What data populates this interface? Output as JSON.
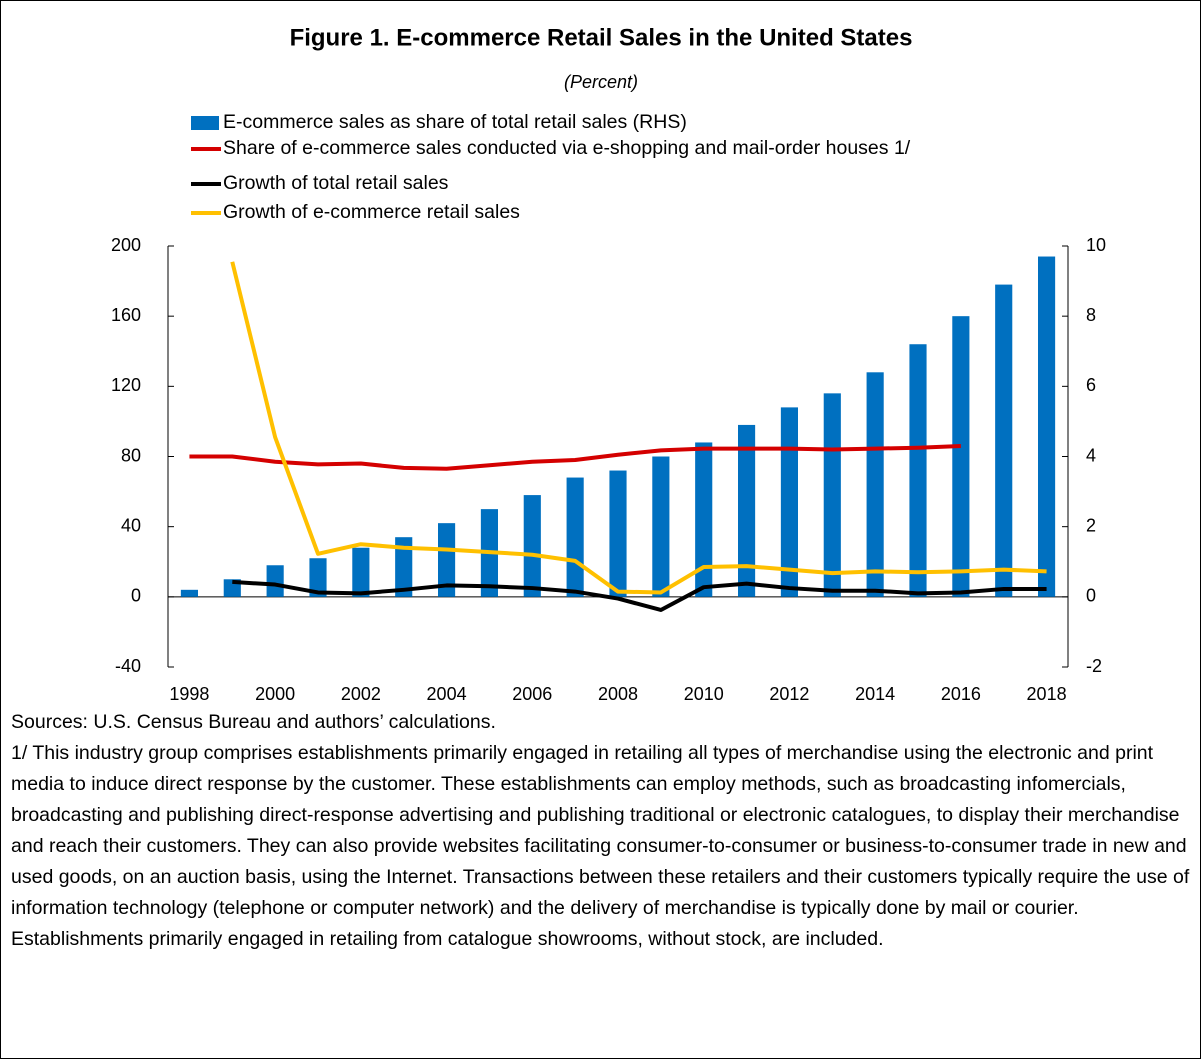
{
  "chart_data": {
    "type": "combo",
    "title": "Figure 1. E-commerce Retail Sales in the United States",
    "subtitle": "(Percent)",
    "categories": [
      "1998",
      "1999",
      "2000",
      "2001",
      "2002",
      "2003",
      "2004",
      "2005",
      "2006",
      "2007",
      "2008",
      "2009",
      "2010",
      "2011",
      "2012",
      "2013",
      "2014",
      "2015",
      "2016",
      "2017",
      "2018"
    ],
    "xtick_labels": [
      "1998",
      "2000",
      "2002",
      "2004",
      "2006",
      "2008",
      "2010",
      "2012",
      "2014",
      "2016",
      "2018"
    ],
    "series": [
      {
        "name": "E-commerce sales as share of total retail sales (RHS)",
        "type": "bar",
        "axis": "y2",
        "color": "#0070c0",
        "values": [
          0.2,
          0.5,
          0.9,
          1.1,
          1.4,
          1.7,
          2.1,
          2.5,
          2.9,
          3.4,
          3.6,
          4.0,
          4.4,
          4.9,
          5.4,
          5.8,
          6.4,
          7.2,
          8.0,
          8.9,
          9.7
        ]
      },
      {
        "name": "Share of e-commerce sales conducted via e-shopping and mail-order houses 1/",
        "type": "line",
        "color": "#d40000",
        "values": [
          80,
          80,
          77,
          75.5,
          76,
          73.5,
          73,
          75,
          77,
          78,
          81,
          83.5,
          84.5,
          84.5,
          84.5,
          84,
          84.5,
          85,
          86,
          null,
          null
        ]
      },
      {
        "name": "Growth of total retail sales",
        "type": "line",
        "color": "#000000",
        "values": [
          null,
          8.5,
          7,
          2.5,
          2,
          4,
          6.5,
          6,
          5,
          3,
          -1,
          -7.5,
          5.5,
          7.5,
          5,
          3.5,
          3.5,
          2,
          2.5,
          4.5,
          4.5
        ]
      },
      {
        "name": "Growth of e-commerce retail sales",
        "type": "line",
        "color": "#ffc000",
        "values": [
          null,
          191,
          91,
          24.5,
          30,
          28,
          27,
          25.5,
          24,
          20.5,
          3,
          2.5,
          17,
          17.5,
          15.5,
          13.5,
          14.5,
          14,
          14.5,
          15.5,
          14.5
        ]
      }
    ],
    "ylim": [
      -40,
      200
    ],
    "yticks": [
      -40,
      0,
      40,
      80,
      120,
      160,
      200
    ],
    "y2lim": [
      -2,
      10
    ],
    "y2ticks": [
      -2,
      0,
      2,
      4,
      6,
      8,
      10
    ],
    "grid": false,
    "notes": [
      "Sources: U.S. Census Bureau and authors’ calculations.",
      "1/ This industry group comprises establishments primarily engaged in retailing all types of merchandise using the electronic and print media to induce direct response by the customer. These establishments can employ methods, such as broadcasting infomercials, broadcasting and publishing direct-response advertising and publishing traditional or electronic catalogues, to display their merchandise and reach their customers. They can also provide websites facilitating consumer-to-consumer or business-to-consumer trade in new and used goods, on an auction basis, using the Internet. Transactions between these retailers and their customers typically require the use of information technology (telephone or computer network) and the delivery of merchandise is typically done by mail or courier. Establishments primarily engaged in retailing from catalogue showrooms, without stock, are included."
    ]
  }
}
